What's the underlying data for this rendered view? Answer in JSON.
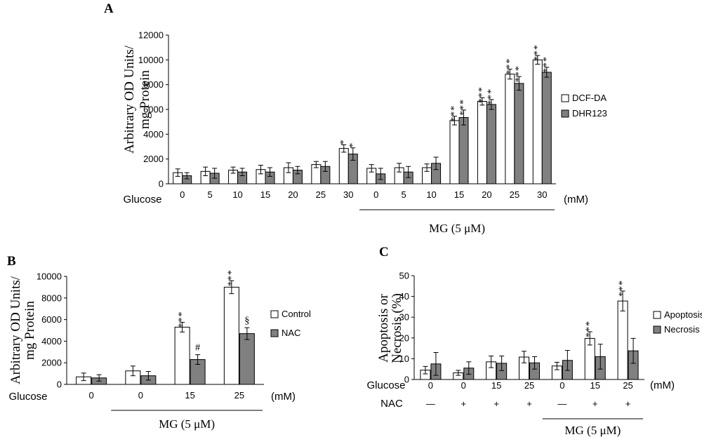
{
  "chart_data": [
    {
      "id": "A",
      "type": "bar",
      "panel_label": "A",
      "ylabel_lines": [
        "Arbitrary OD Units/",
        "mg Protein"
      ],
      "ylim": [
        0,
        12000
      ],
      "yticks": [
        0,
        2000,
        4000,
        6000,
        8000,
        10000,
        12000
      ],
      "categories": [
        "0",
        "5",
        "10",
        "15",
        "20",
        "25",
        "30",
        "0",
        "5",
        "10",
        "15",
        "20",
        "25",
        "30"
      ],
      "row_label": "Glucose",
      "unit": "(mM)",
      "group_label": "MG (5 μM)",
      "group_start_index": 7,
      "series": [
        {
          "name": "DCF-DA",
          "color": "#ffffff",
          "values": [
            900,
            1000,
            1100,
            1150,
            1300,
            1550,
            2850,
            1250,
            1300,
            1300,
            5100,
            6650,
            8850,
            10000
          ],
          "errors": [
            300,
            350,
            250,
            350,
            400,
            250,
            300,
            300,
            350,
            300,
            350,
            300,
            400,
            350
          ],
          "sig": [
            "",
            "",
            "",
            "",
            "",
            "",
            "*",
            "",
            "",
            "",
            "***",
            "***",
            "***",
            "***"
          ]
        },
        {
          "name": "DHR123",
          "color": "#808080",
          "values": [
            650,
            850,
            950,
            950,
            1100,
            1400,
            2400,
            800,
            950,
            1650,
            5350,
            6400,
            8100,
            9000
          ],
          "errors": [
            250,
            400,
            300,
            350,
            300,
            400,
            500,
            450,
            450,
            500,
            600,
            400,
            550,
            400
          ],
          "sig": [
            "",
            "",
            "",
            "",
            "",
            "",
            "*",
            "",
            "",
            "",
            "***",
            "***",
            "***",
            "***"
          ]
        }
      ]
    },
    {
      "id": "B",
      "type": "bar",
      "panel_label": "B",
      "ylabel_lines": [
        "Arbitrary OD Units/",
        "mg Protein"
      ],
      "ylim": [
        0,
        10000
      ],
      "yticks": [
        0,
        2000,
        4000,
        6000,
        8000,
        10000
      ],
      "categories": [
        "0",
        "0",
        "15",
        "25"
      ],
      "row_label": "Glucose",
      "unit": "(mM)",
      "group_label": "MG (5 μM)",
      "group_start_index": 1,
      "series": [
        {
          "name": "Control",
          "color": "#ffffff",
          "values": [
            700,
            1250,
            5300,
            9000
          ],
          "errors": [
            350,
            450,
            450,
            600
          ],
          "sig": [
            "",
            "",
            "***",
            "***"
          ]
        },
        {
          "name": "NAC",
          "color": "#808080",
          "values": [
            600,
            800,
            2300,
            4700
          ],
          "errors": [
            300,
            400,
            450,
            550
          ],
          "sig": [
            "",
            "",
            "#",
            "§"
          ]
        }
      ]
    },
    {
      "id": "C",
      "type": "bar",
      "panel_label": "C",
      "ylabel_lines": [
        "Apoptosis or",
        "Necrosis (%)"
      ],
      "ylim": [
        0,
        50
      ],
      "yticks": [
        0,
        10,
        20,
        30,
        40,
        50
      ],
      "categories": [
        "0",
        "0",
        "15",
        "25",
        "0",
        "15",
        "25"
      ],
      "row_label": "Glucose",
      "unit": "(mM)",
      "nac_row_label": "NAC",
      "nac": [
        "—",
        "+",
        "+",
        "+",
        "—",
        "+",
        "+"
      ],
      "group_label": "MG (5 μM)",
      "group_start_index": 4,
      "series": [
        {
          "name": "Apoptosis",
          "color": "#ffffff",
          "values": [
            4.5,
            3.2,
            8.5,
            10.8,
            6.5,
            19.8,
            37.8
          ],
          "errors": [
            1.8,
            1.2,
            2.8,
            2.8,
            1.8,
            3.2,
            4.8
          ],
          "sig": [
            "",
            "",
            "",
            "",
            "",
            "***",
            "***"
          ]
        },
        {
          "name": "Necrosis",
          "color": "#808080",
          "values": [
            7.5,
            5.5,
            7.8,
            8.0,
            9.2,
            11.0,
            13.8
          ],
          "errors": [
            5.5,
            3.0,
            3.5,
            3.0,
            4.8,
            6.0,
            6.0
          ],
          "sig": [
            "",
            "",
            "",
            "",
            "",
            "",
            ""
          ]
        }
      ]
    }
  ]
}
